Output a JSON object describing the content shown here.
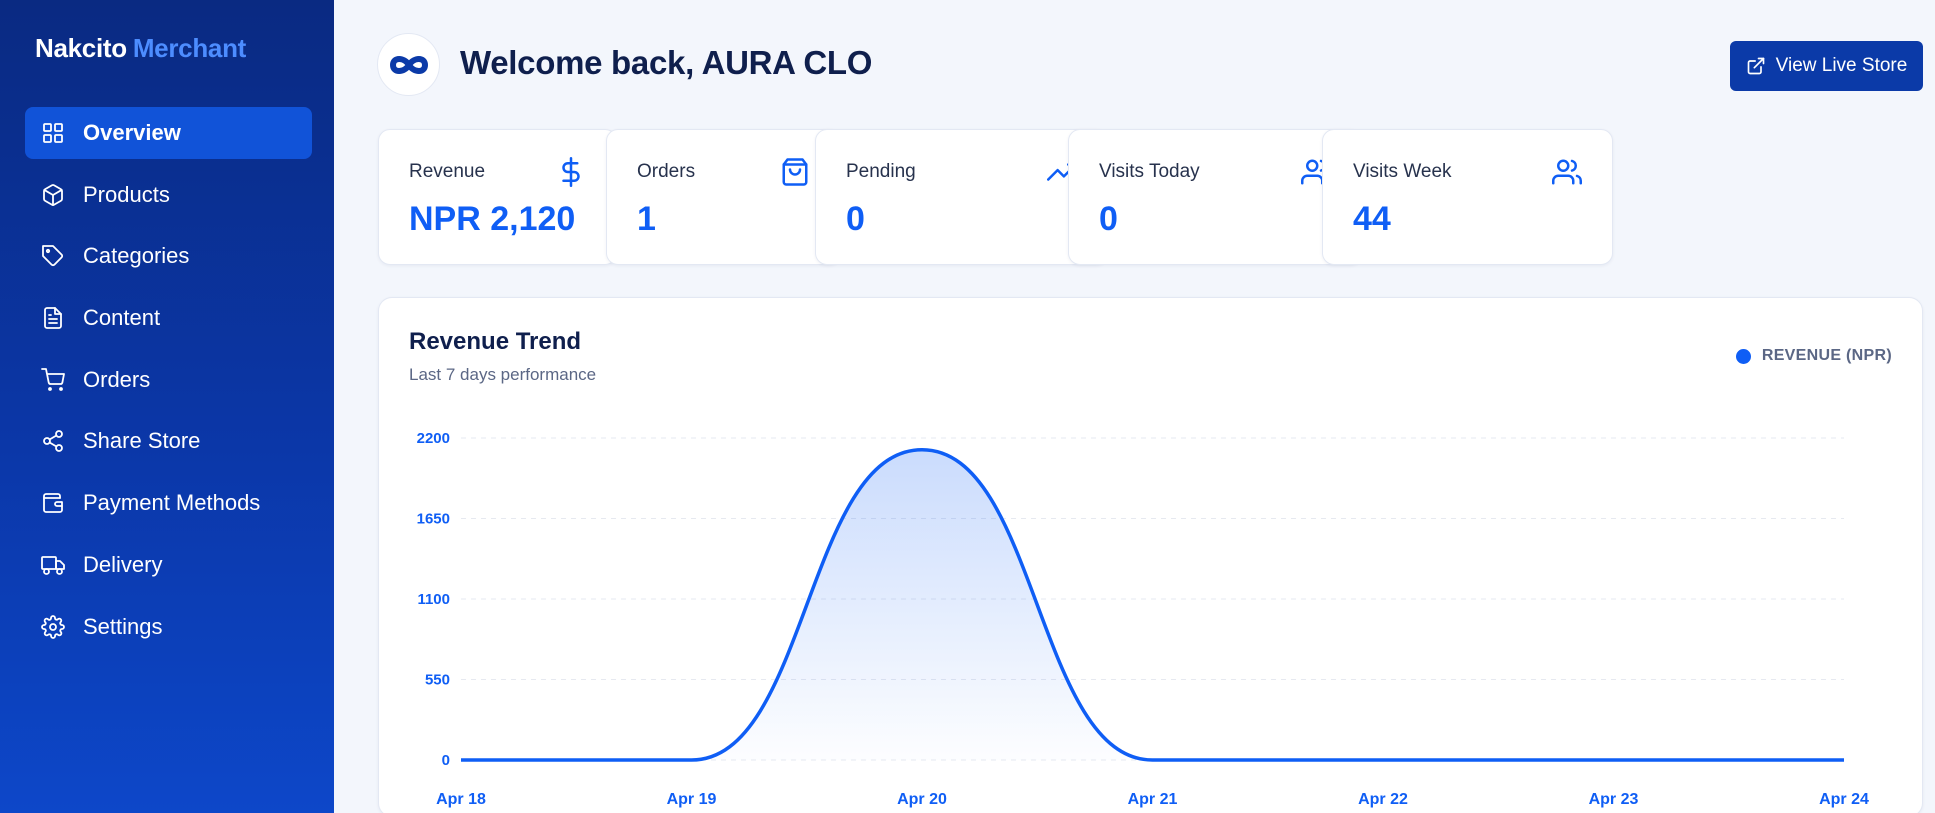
{
  "brand": {
    "name": "Nakcito",
    "accent": "Merchant"
  },
  "sidebar": {
    "items": [
      {
        "label": "Overview",
        "icon": "grid-icon",
        "active": true
      },
      {
        "label": "Products",
        "icon": "box-icon"
      },
      {
        "label": "Categories",
        "icon": "tag-icon"
      },
      {
        "label": "Content",
        "icon": "document-icon"
      },
      {
        "label": "Orders",
        "icon": "cart-icon"
      },
      {
        "label": "Share Store",
        "icon": "share-icon"
      },
      {
        "label": "Payment Methods",
        "icon": "wallet-icon"
      },
      {
        "label": "Delivery",
        "icon": "truck-icon"
      },
      {
        "label": "Settings",
        "icon": "gear-icon"
      }
    ]
  },
  "header": {
    "welcome": "Welcome back, AURA CLO",
    "live_button": "View Live Store"
  },
  "stats": [
    {
      "label": "Revenue",
      "value": "NPR 2,120",
      "icon": "dollar-icon"
    },
    {
      "label": "Orders",
      "value": "1",
      "icon": "shopping-bag-icon"
    },
    {
      "label": "Pending",
      "value": "0",
      "icon": "trending-up-icon"
    },
    {
      "label": "Visits Today",
      "value": "0",
      "icon": "users-icon"
    },
    {
      "label": "Visits Week",
      "value": "44",
      "icon": "users-icon"
    }
  ],
  "chart": {
    "title": "Revenue Trend",
    "subtitle": "Last 7 days performance",
    "legend": "REVENUE (NPR)"
  },
  "chart_data": {
    "type": "area",
    "title": "Revenue Trend",
    "subtitle": "Last 7 days performance",
    "x": [
      "Apr 18",
      "Apr 19",
      "Apr 20",
      "Apr 21",
      "Apr 22",
      "Apr 23",
      "Apr 24"
    ],
    "series": [
      {
        "name": "REVENUE (NPR)",
        "values": [
          0,
          0,
          2120,
          0,
          0,
          0,
          0
        ]
      }
    ],
    "yticks": [
      0,
      550,
      1100,
      1650,
      2200
    ],
    "ylim": [
      0,
      2200
    ],
    "grid": true,
    "legend_position": "top-right",
    "color": "#0f5ef5"
  },
  "colors": {
    "accent": "#0f5ef5",
    "sidebar": "#0b37a8",
    "button": "#0b3aa8"
  }
}
